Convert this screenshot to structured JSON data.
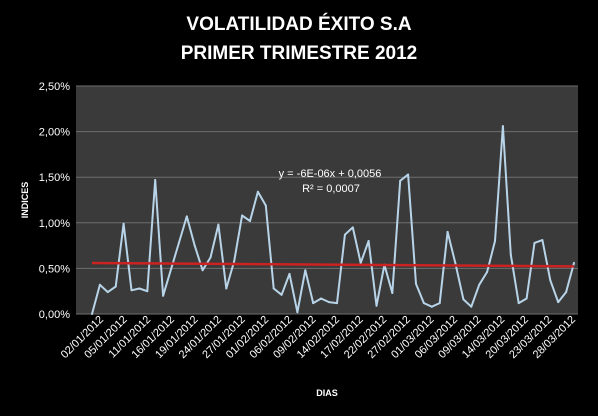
{
  "chart_data": {
    "type": "line",
    "title_lines": [
      "VOLATILIDAD ÉXITO S.A",
      "PRIMER TRIMESTRE 2012"
    ],
    "xlabel": "DIAS",
    "ylabel": "INDICES",
    "ylim": [
      0,
      0.025
    ],
    "y_ticks": [
      "0,00%",
      "0,50%",
      "1,00%",
      "1,50%",
      "2,00%",
      "2,50%"
    ],
    "y_tick_values": [
      0,
      0.005,
      0.01,
      0.015,
      0.02,
      0.025
    ],
    "x_tick_labels": [
      "02/01/2012",
      "05/01/2012",
      "11/01/2012",
      "16/01/2012",
      "19/01/2012",
      "24/01/2012",
      "27/01/2012",
      "01/02/2012",
      "06/02/2012",
      "09/02/2012",
      "14/02/2012",
      "17/02/2012",
      "22/02/2012",
      "27/02/2012",
      "01/03/2012",
      "06/03/2012",
      "09/03/2012",
      "14/03/2012",
      "20/03/2012",
      "23/03/2012",
      "28/03/2012"
    ],
    "grid": true,
    "plot_background": "#3a3a3a",
    "series": [
      {
        "color": "#b8d4e8",
        "values": [
          0.0,
          0.0032,
          0.0024,
          0.003,
          0.0099,
          0.0026,
          0.0028,
          0.0025,
          0.0147,
          0.002,
          0.0049,
          0.0078,
          0.0107,
          0.0075,
          0.0048,
          0.0062,
          0.0098,
          0.0028,
          0.0058,
          0.0108,
          0.0102,
          0.0134,
          0.0119,
          0.0028,
          0.0021,
          0.0044,
          0.0002,
          0.0048,
          0.0012,
          0.0017,
          0.0013,
          0.0012,
          0.0087,
          0.0095,
          0.0056,
          0.008,
          0.0009,
          0.0054,
          0.0023,
          0.0146,
          0.0153,
          0.0033,
          0.0012,
          0.0008,
          0.0012,
          0.009,
          0.0055,
          0.0016,
          0.0008,
          0.0032,
          0.0046,
          0.008,
          0.0206,
          0.0065,
          0.0012,
          0.0017,
          0.0078,
          0.0081,
          0.0037,
          0.0013,
          0.0024,
          0.0056
        ]
      }
    ],
    "trendline": {
      "color": "#cc2222",
      "equation": "y = -6E-06x + 0,0056",
      "r_squared": "R² = 0,0007",
      "slope": -6e-06,
      "intercept": 0.0056
    }
  }
}
